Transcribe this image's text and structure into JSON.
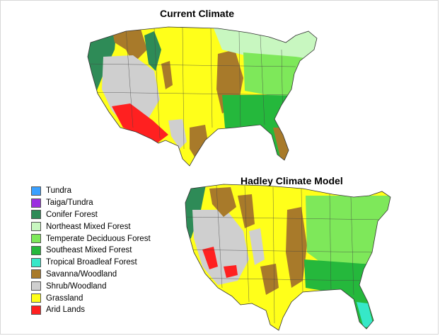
{
  "titles": {
    "current": "Current Climate",
    "hadley": "Hadley Climate Model"
  },
  "legend": [
    {
      "label": "Tundra",
      "color": "#3aa0ff"
    },
    {
      "label": "Taiga/Tundra",
      "color": "#9b2fe0"
    },
    {
      "label": "Conifer Forest",
      "color": "#2e8b57"
    },
    {
      "label": "Northeast Mixed Forest",
      "color": "#c8f7c0"
    },
    {
      "label": "Temperate Deciduous Forest",
      "color": "#7ee85a"
    },
    {
      "label": "Southeast Mixed Forest",
      "color": "#25b83c"
    },
    {
      "label": "Tropical Broadleaf Forest",
      "color": "#36e8c8"
    },
    {
      "label": "Savanna/Woodland",
      "color": "#a87a2a"
    },
    {
      "label": "Shrub/Woodland",
      "color": "#cfcfcf"
    },
    {
      "label": "Grassland",
      "color": "#ffff1a"
    },
    {
      "label": "Arid Lands",
      "color": "#ff2020"
    }
  ]
}
